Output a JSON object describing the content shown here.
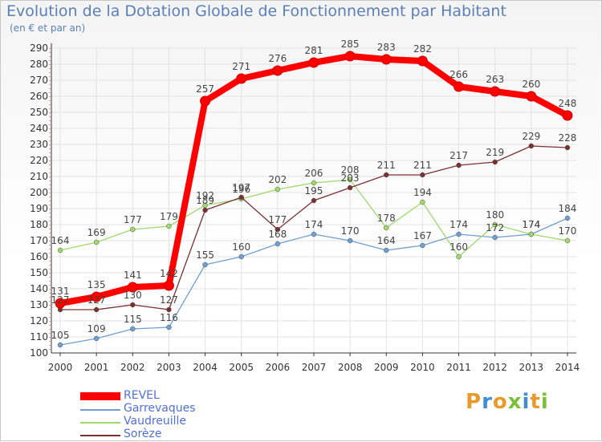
{
  "chart_data": {
    "type": "line",
    "title": "Evolution de la Dotation Globale de Fonctionnement par Habitant",
    "subtitle": "(en € et par an)",
    "x": [
      "2000",
      "2001",
      "2002",
      "2003",
      "2004",
      "2005",
      "2006",
      "2007",
      "2008",
      "2009",
      "2010",
      "2011",
      "2012",
      "2013",
      "2014"
    ],
    "ylim": [
      100,
      290
    ],
    "yticks": [
      100,
      110,
      120,
      130,
      140,
      150,
      160,
      170,
      180,
      190,
      200,
      210,
      220,
      230,
      240,
      250,
      260,
      270,
      280,
      290
    ],
    "series": [
      {
        "name": "REVEL",
        "color": "#ff0000",
        "values": [
          131,
          135,
          141,
          142,
          257,
          271,
          276,
          281,
          285,
          283,
          282,
          266,
          263,
          260,
          248
        ]
      },
      {
        "name": "Garrevaques",
        "color": "#6f9fd0",
        "values": [
          105,
          109,
          115,
          116,
          155,
          160,
          168,
          174,
          170,
          164,
          167,
          174,
          172,
          174,
          184
        ]
      },
      {
        "name": "Vaudreuille",
        "color": "#9fd86b",
        "values": [
          164,
          169,
          177,
          179,
          192,
          196,
          202,
          206,
          208,
          178,
          194,
          160,
          180,
          174,
          170
        ]
      },
      {
        "name": "Sorèze",
        "color": "#7a3030",
        "values": [
          127,
          127,
          130,
          127,
          189,
          197,
          177,
          195,
          203,
          211,
          211,
          217,
          219,
          229,
          228
        ]
      }
    ]
  },
  "logo": {
    "letters": [
      "P",
      "r",
      "o",
      "x",
      "i",
      "t",
      "i"
    ],
    "colors": [
      "#e89a2a",
      "#3f8fcf",
      "#e89a2a",
      "#7bbf3a",
      "#3f8fcf",
      "#e89a2a",
      "#7bbf3a"
    ]
  }
}
